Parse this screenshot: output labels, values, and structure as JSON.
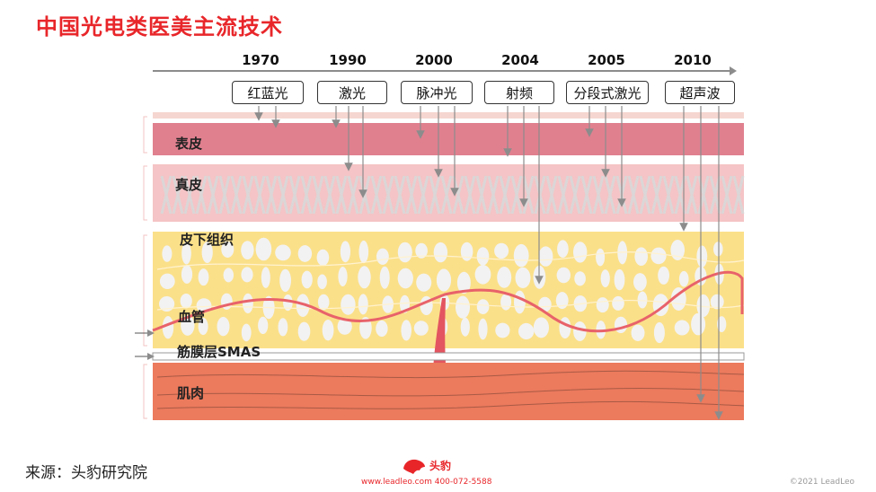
{
  "title": "中国光电类医美主流技术",
  "timeline": {
    "years": [
      "1970",
      "1990",
      "2000",
      "2004",
      "2005",
      "2010"
    ],
    "technologies": [
      "红蓝光",
      "激光",
      "脉冲光",
      "射频",
      "分段式激光",
      "超声波"
    ]
  },
  "layers": {
    "epidermis": "表皮",
    "dermis": "真皮",
    "subcutaneous": "皮下组织",
    "vessel": "血管",
    "smas": "筋膜层SMAS",
    "muscle": "肌肉"
  },
  "footer": {
    "source": "来源：头豹研究院",
    "logo_text": "头豹",
    "contact": "www.leadleo.com 400-072-5588",
    "copyright": "©2021 LeadLeo"
  },
  "colors": {
    "title": "#e8262a",
    "epidermis": "#e0808f",
    "dermis": "#f5c4c6",
    "subcutaneous": "#fbe08a",
    "muscle": "#ec7a5d",
    "vessel": "#e8626a"
  }
}
